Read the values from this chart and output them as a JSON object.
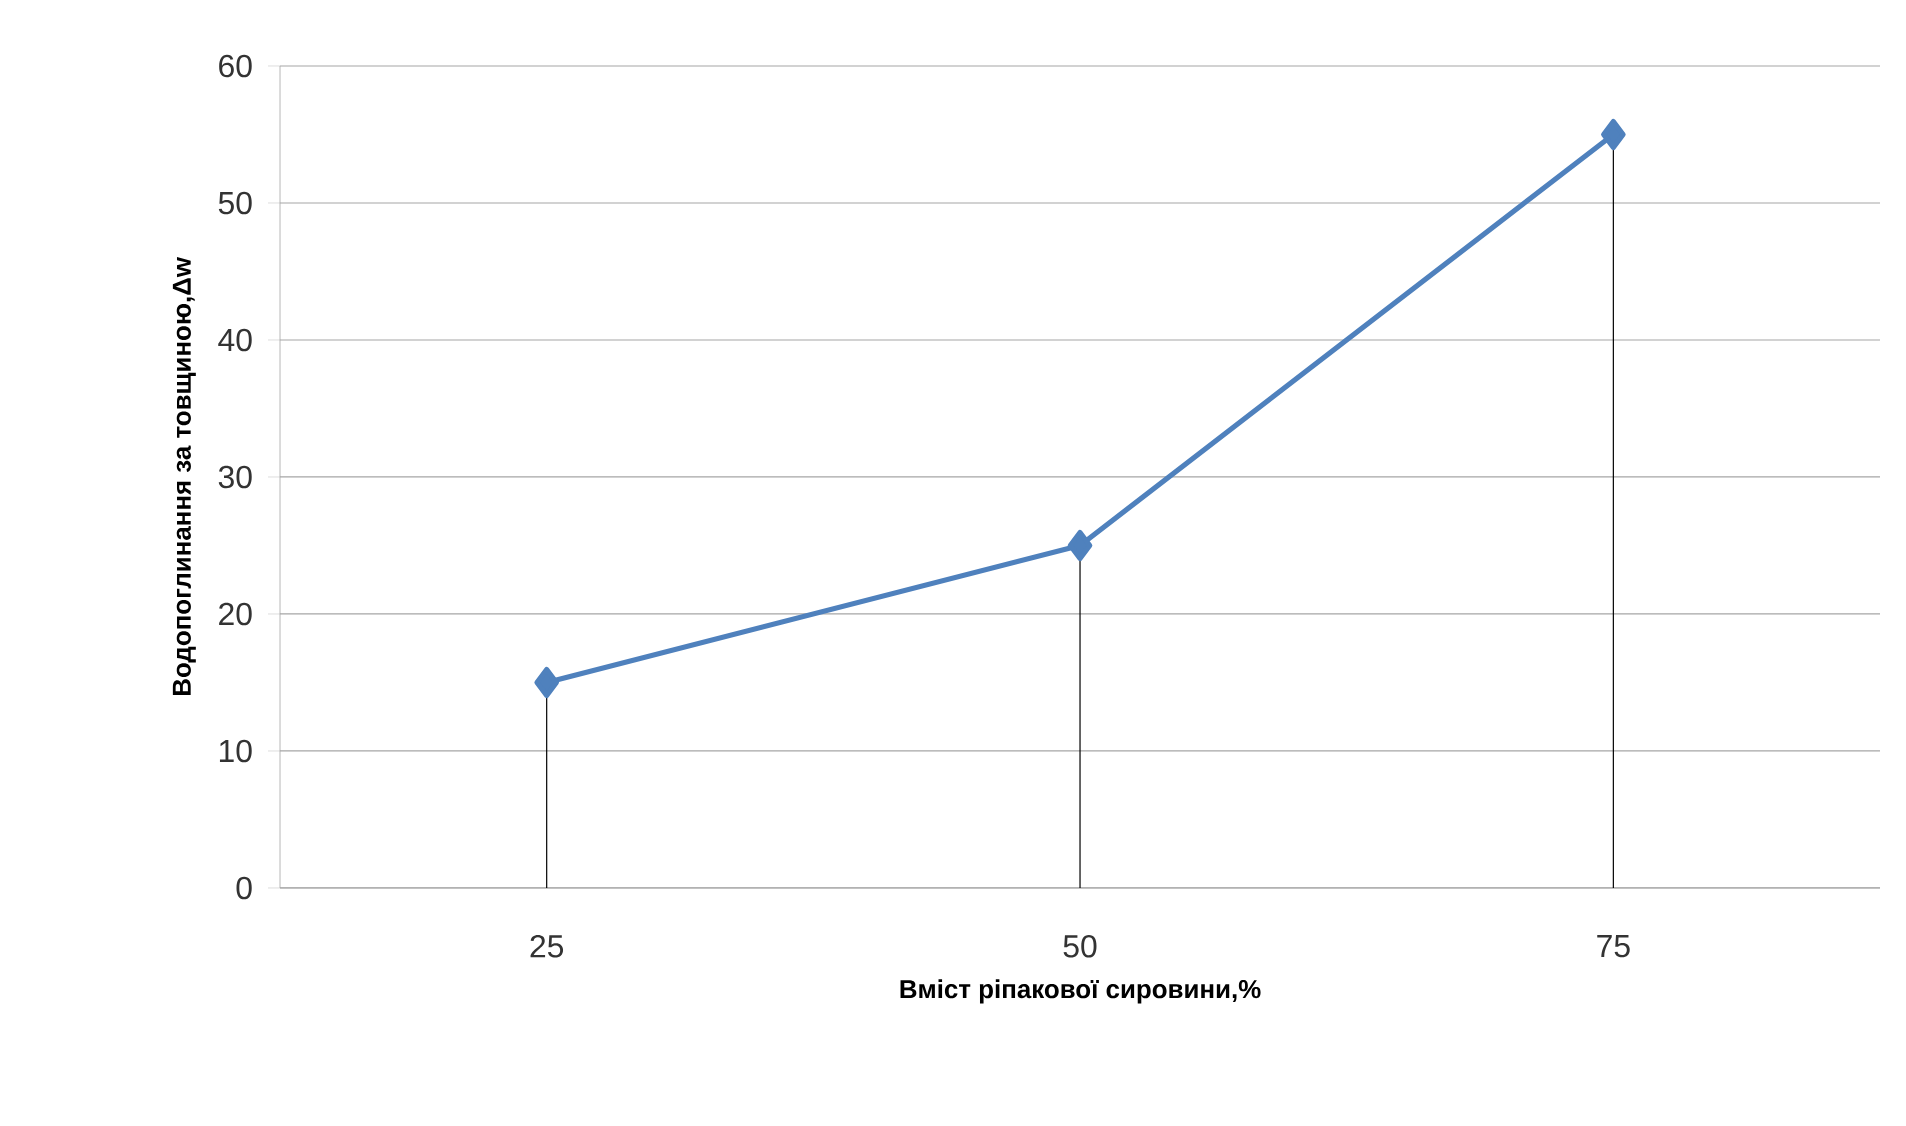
{
  "chart_data": {
    "type": "line",
    "xlabel": "Вміст ріпакової сировини,%",
    "ylabel": "Водопоглинання за товщиною,Δw",
    "categories": [
      "25",
      "50",
      "75"
    ],
    "series": [
      {
        "color": "#4f81bd",
        "values": [
          15,
          25,
          55
        ],
        "errors": [
          [
            0,
            15
          ],
          [
            0,
            25
          ],
          [
            0,
            55
          ]
        ]
      }
    ],
    "ylim": [
      0,
      60
    ],
    "yticks": [
      0,
      10,
      20,
      30,
      40,
      50,
      60
    ],
    "grid": "y",
    "marker": "diamond",
    "line_style": "solid"
  }
}
